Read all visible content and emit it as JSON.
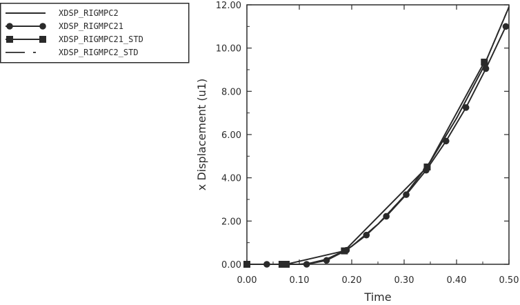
{
  "chart_data": {
    "type": "line",
    "xlabel": "Time",
    "ylabel": "x Displacement (u1)",
    "xlim": [
      0.0,
      0.5
    ],
    "ylim": [
      0.0,
      12.0
    ],
    "xticks": [
      "0.00",
      "0.10",
      "0.20",
      "0.30",
      "0.40",
      "0.50"
    ],
    "yticks": [
      "0.00",
      "2.00",
      "4.00",
      "6.00",
      "8.00",
      "10.00",
      "12.00"
    ],
    "legend_position": "top-left",
    "grid": false,
    "series": [
      {
        "name": "XDSP_RIGMPC2",
        "style": "solid",
        "marker": "none",
        "x": [
          0.0,
          0.05,
          0.1,
          0.12,
          0.15,
          0.18,
          0.2,
          0.25,
          0.3,
          0.35,
          0.4,
          0.45,
          0.5
        ],
        "y": [
          0.0,
          0.0,
          0.0,
          0.05,
          0.22,
          0.55,
          0.83,
          1.85,
          3.15,
          4.75,
          6.75,
          9.05,
          11.9
        ]
      },
      {
        "name": "XDSP_RIGMPC21",
        "style": "solid",
        "marker": "circle",
        "x": [
          0.0,
          0.038,
          0.076,
          0.114,
          0.152,
          0.19,
          0.228,
          0.266,
          0.304,
          0.342,
          0.38,
          0.418,
          0.456,
          0.494
        ],
        "y": [
          0.0,
          0.0,
          0.0,
          0.0,
          0.18,
          0.65,
          1.35,
          2.22,
          3.22,
          4.35,
          5.7,
          7.25,
          9.05,
          11.0
        ]
      },
      {
        "name": "XDSP_RIGMPC21_STD",
        "style": "solid",
        "marker": "square",
        "x": [
          0.0,
          0.067,
          0.075,
          0.186,
          0.344,
          0.453
        ],
        "y": [
          0.0,
          0.0,
          0.0,
          0.62,
          4.5,
          9.35
        ]
      },
      {
        "name": "XDSP_RIGMPC2_STD",
        "style": "dashed",
        "marker": "none",
        "x": [
          0.0,
          0.05,
          0.1,
          0.12,
          0.15,
          0.18,
          0.2,
          0.25,
          0.3,
          0.35,
          0.4,
          0.45,
          0.5
        ],
        "y": [
          0.0,
          0.0,
          0.0,
          0.05,
          0.22,
          0.56,
          0.84,
          1.86,
          3.16,
          4.76,
          6.76,
          9.06,
          11.92
        ]
      }
    ]
  }
}
